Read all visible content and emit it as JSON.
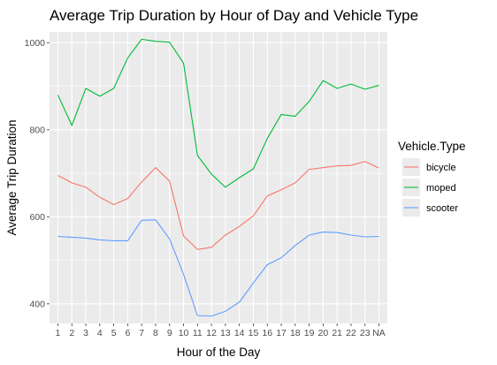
{
  "chart_data": {
    "type": "line",
    "title": "Average Trip Duration by Hour of Day and Vehicle Type",
    "xlabel": "Hour of the Day",
    "ylabel": "Average Trip Duration",
    "categories": [
      "1",
      "2",
      "3",
      "4",
      "5",
      "6",
      "7",
      "8",
      "9",
      "10",
      "11",
      "12",
      "13",
      "14",
      "15",
      "16",
      "17",
      "18",
      "19",
      "20",
      "21",
      "22",
      "23",
      "NA"
    ],
    "y_ticks": [
      400,
      600,
      800,
      1000
    ],
    "ylim": [
      355,
      1025
    ],
    "grid": true,
    "legend": {
      "title": "Vehicle.Type",
      "position": "right"
    },
    "series": [
      {
        "name": "bicycle",
        "color": "#F8766D",
        "values": [
          695,
          678,
          668,
          645,
          628,
          642,
          680,
          713,
          682,
          556,
          525,
          530,
          558,
          578,
          602,
          648,
          662,
          678,
          709,
          713,
          717,
          718,
          727,
          712
        ]
      },
      {
        "name": "moped",
        "color": "#00BA38",
        "values": [
          880,
          810,
          895,
          877,
          895,
          965,
          1008,
          1003,
          1001,
          953,
          741,
          698,
          668,
          690,
          710,
          780,
          835,
          831,
          865,
          913,
          895,
          905,
          893,
          902
        ]
      },
      {
        "name": "scooter",
        "color": "#619CFF",
        "values": [
          555,
          553,
          551,
          547,
          545,
          545,
          592,
          593,
          549,
          468,
          373,
          372,
          383,
          404,
          448,
          490,
          506,
          534,
          558,
          565,
          564,
          558,
          554,
          555
        ]
      }
    ]
  },
  "colors": {
    "panel_background": "#EBEBEB",
    "grid_major": "#FFFFFF",
    "tick_color": "#333333"
  }
}
